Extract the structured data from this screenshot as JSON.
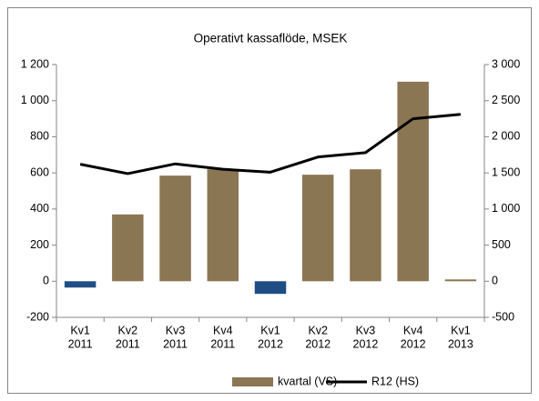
{
  "chart_data": {
    "type": "combo",
    "title": "Operativt kassaflöde, MSEK",
    "categories": [
      [
        "Kv1",
        "2011"
      ],
      [
        "Kv2",
        "2011"
      ],
      [
        "Kv3",
        "2011"
      ],
      [
        "Kv4",
        "2011"
      ],
      [
        "Kv1",
        "2012"
      ],
      [
        "Kv2",
        "2012"
      ],
      [
        "Kv3",
        "2012"
      ],
      [
        "Kv4",
        "2012"
      ],
      [
        "Kv1",
        "2013"
      ]
    ],
    "series": [
      {
        "name": "kvartal (VS)",
        "type": "bar",
        "axis": "y",
        "color": "#8b7653",
        "negative_color": "#1f4e85",
        "values": [
          -35,
          370,
          585,
          620,
          -70,
          590,
          620,
          1105,
          10
        ]
      },
      {
        "name": "R12 (HS)",
        "type": "line",
        "axis": "y2",
        "color": "#000000",
        "values": [
          1620,
          1490,
          1625,
          1550,
          1510,
          1720,
          1780,
          2250,
          2310
        ]
      }
    ],
    "ylim": [
      -200,
      1200
    ],
    "yticks": [
      -200,
      0,
      200,
      400,
      600,
      800,
      {
        "value": 1000,
        "label": "1 000"
      },
      {
        "value": 1200,
        "label": "1 200"
      }
    ],
    "y2lim": [
      -500,
      3000
    ],
    "y2ticks": [
      -500,
      0,
      500,
      {
        "value": 1000,
        "label": "1 000"
      },
      {
        "value": 1500,
        "label": "1 500"
      },
      {
        "value": 2000,
        "label": "2 000"
      },
      {
        "value": 2500,
        "label": "2 500"
      },
      {
        "value": 3000,
        "label": "3 000"
      }
    ],
    "grid": false,
    "legend": "bottom"
  }
}
